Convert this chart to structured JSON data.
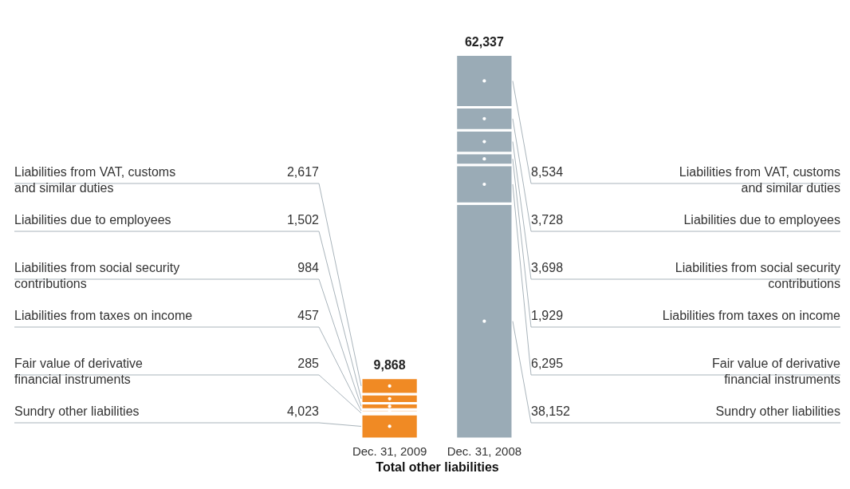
{
  "chart_data": {
    "type": "bar",
    "stacked": true,
    "xlabel": "Total other liabilities",
    "categories": [
      "Dec. 31, 2009",
      "Dec. 31, 2008"
    ],
    "series": [
      {
        "name": "Sundry other liabilities",
        "colors": [
          "#f08a24",
          "#9aabb6"
        ],
        "values": [
          4023,
          38152
        ],
        "value_labels": [
          "4,023",
          "38,152"
        ]
      },
      {
        "name": "Fair value of derivative financial instruments",
        "colors": [
          "#f08a24",
          "#9aabb6"
        ],
        "values": [
          285,
          6295
        ],
        "value_labels": [
          "285",
          "6,295"
        ]
      },
      {
        "name": "Liabilities from taxes on income",
        "colors": [
          "#f08a24",
          "#9aabb6"
        ],
        "values": [
          457,
          1929
        ],
        "value_labels": [
          "457",
          "1,929"
        ]
      },
      {
        "name": "Liabilities from social security contributions",
        "colors": [
          "#f08a24",
          "#9aabb6"
        ],
        "values": [
          984,
          3698
        ],
        "value_labels": [
          "984",
          "3,698"
        ]
      },
      {
        "name": "Liabilities due to employees",
        "colors": [
          "#f08a24",
          "#9aabb6"
        ],
        "values": [
          1502,
          3728
        ],
        "value_labels": [
          "1,502",
          "3,728"
        ]
      },
      {
        "name": "Liabilities from VAT, customs and similar duties",
        "colors": [
          "#f08a24",
          "#9aabb6"
        ],
        "values": [
          2617,
          8534
        ],
        "value_labels": [
          "2,617",
          "8,534"
        ]
      }
    ],
    "totals": [
      "9,868",
      "62,337"
    ]
  }
}
